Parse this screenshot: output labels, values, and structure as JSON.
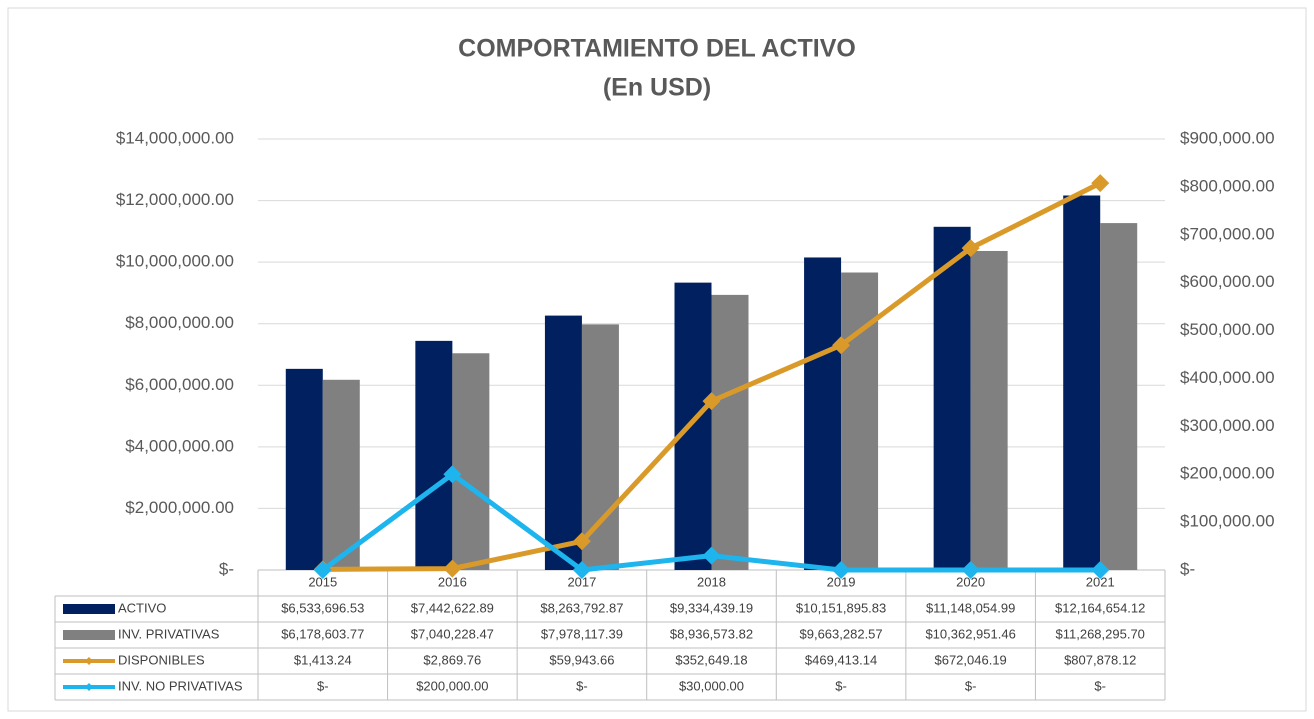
{
  "chart_data": {
    "type": "bar",
    "title": "COMPORTAMIENTO DEL ACTIVO",
    "subtitle": "(En USD)",
    "categories": [
      "2015",
      "2016",
      "2017",
      "2018",
      "2019",
      "2020",
      "2021"
    ],
    "series": [
      {
        "name": "ACTIVO",
        "type": "bar",
        "color": "#002060",
        "values": [
          6533696.53,
          7442622.89,
          8263792.87,
          9334439.19,
          10151895.83,
          11148054.99,
          12164654.12
        ],
        "value_labels": [
          "$6,533,696.53",
          "$7,442,622.89",
          "$8,263,792.87",
          "$9,334,439.19",
          "$10,151,895.83",
          "$11,148,054.99",
          "$12,164,654.12"
        ]
      },
      {
        "name": "INV. PRIVATIVAS",
        "type": "bar",
        "color": "#808080",
        "values": [
          6178603.77,
          7040228.47,
          7978117.39,
          8936573.82,
          9663282.57,
          10362951.46,
          11268295.7
        ],
        "value_labels": [
          "$6,178,603.77",
          "$7,040,228.47",
          "$7,978,117.39",
          "$8,936,573.82",
          "$9,663,282.57",
          "$10,362,951.46",
          "$11,268,295.70"
        ]
      },
      {
        "name": "DISPONIBLES",
        "type": "line",
        "axis": "y2",
        "color": "#DA9A2A",
        "values": [
          1413.24,
          2869.76,
          59943.66,
          352649.18,
          469413.14,
          672046.19,
          807878.12
        ],
        "value_labels": [
          "$1,413.24",
          "$2,869.76",
          "$59,943.66",
          "$352,649.18",
          "$469,413.14",
          "$672,046.19",
          "$807,878.12"
        ]
      },
      {
        "name": "INV. NO PRIVATIVAS",
        "type": "line",
        "axis": "y2",
        "color": "#1EB4EE",
        "values": [
          0,
          200000,
          0,
          30000,
          0,
          0,
          0
        ],
        "value_labels": [
          "$-",
          "$200,000.00",
          "$-",
          "$30,000.00",
          "$-",
          "$-",
          "$-"
        ]
      }
    ],
    "ylim": [
      0,
      14000000
    ],
    "yticks": [
      {
        "value": 0,
        "label": "$-"
      },
      {
        "value": 2000000,
        "label": "$2,000,000.00"
      },
      {
        "value": 4000000,
        "label": "$4,000,000.00"
      },
      {
        "value": 6000000,
        "label": "$6,000,000.00"
      },
      {
        "value": 8000000,
        "label": "$8,000,000.00"
      },
      {
        "value": 10000000,
        "label": "$10,000,000.00"
      },
      {
        "value": 12000000,
        "label": "$12,000,000.00"
      },
      {
        "value": 14000000,
        "label": "$14,000,000.00"
      }
    ],
    "y2lim": [
      0,
      900000
    ],
    "y2ticks": [
      {
        "value": 0,
        "label": "$-"
      },
      {
        "value": 100000,
        "label": "$100,000.00"
      },
      {
        "value": 200000,
        "label": "$200,000.00"
      },
      {
        "value": 300000,
        "label": "$300,000.00"
      },
      {
        "value": 400000,
        "label": "$400,000.00"
      },
      {
        "value": 500000,
        "label": "$500,000.00"
      },
      {
        "value": 600000,
        "label": "$600,000.00"
      },
      {
        "value": 700000,
        "label": "$700,000.00"
      },
      {
        "value": 800000,
        "label": "$800,000.00"
      },
      {
        "value": 900000,
        "label": "$900,000.00"
      }
    ],
    "grid": true
  }
}
